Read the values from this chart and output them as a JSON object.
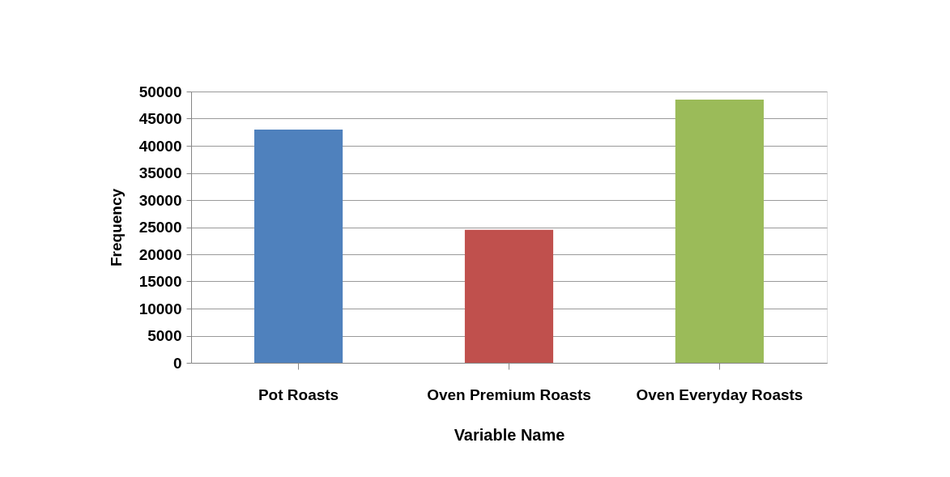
{
  "chart_data": {
    "type": "bar",
    "xlabel": "Variable Name",
    "ylabel": "Frequency",
    "categories": [
      "Pot Roasts",
      "Oven Premium Roasts",
      "Oven Everyday Roasts"
    ],
    "values": [
      43000,
      24500,
      48500
    ],
    "colors": [
      "#4f81bd",
      "#c0504d",
      "#9bbb59"
    ],
    "ylim": [
      0,
      50000
    ],
    "yticks": [
      0,
      5000,
      10000,
      15000,
      20000,
      25000,
      30000,
      35000,
      40000,
      45000,
      50000
    ],
    "grid": "y"
  }
}
